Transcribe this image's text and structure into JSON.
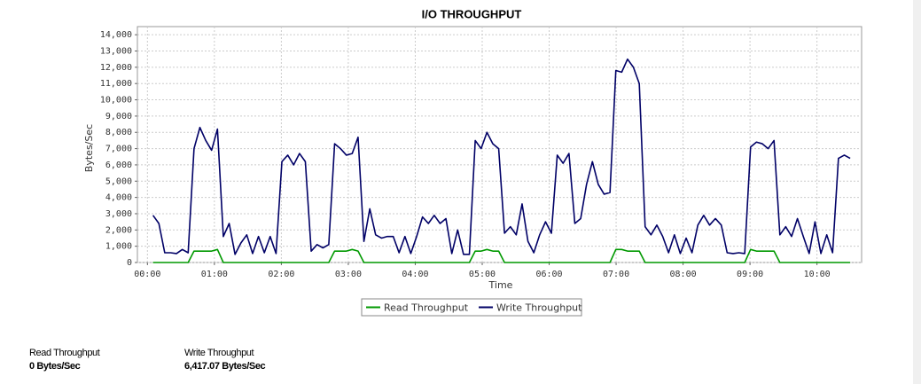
{
  "chart_data": {
    "type": "line",
    "title": "I/O THROUGHPUT",
    "xlabel": "Time",
    "ylabel": "Bytes/Sec",
    "x": [
      5,
      10.25,
      15.5,
      20.75,
      26,
      31.25,
      36.5,
      41.75,
      47,
      52.25,
      57.5,
      62.75,
      68,
      73.25,
      78.5,
      83.75,
      89,
      94.25,
      99.5,
      104.75,
      110,
      115.25,
      120.5,
      125.75,
      131,
      136.25,
      141.5,
      146.75,
      152,
      157.25,
      162.5,
      167.75,
      173,
      178.25,
      183.5,
      188.75,
      194,
      199.25,
      204.5,
      209.75,
      215,
      220.25,
      225.5,
      230.75,
      236,
      241.25,
      246.5,
      251.75,
      257,
      262.25,
      267.5,
      272.75,
      278,
      283.25,
      288.5,
      293.75,
      299,
      304.25,
      309.5,
      314.75,
      320,
      325.25,
      330.5,
      335.75,
      341,
      346.25,
      351.5,
      356.75,
      362,
      367.25,
      372.5,
      377.75,
      383,
      388.25,
      393.5,
      398.75,
      404,
      409.25,
      414.5,
      419.75,
      425,
      430.25,
      435.5,
      440.75,
      446,
      451.25,
      456.5,
      461.75,
      467,
      472.25,
      477.5,
      482.75,
      488,
      493.25,
      498.5,
      503.75,
      509,
      514.25,
      519.5,
      524.75,
      530,
      535.25,
      540.5,
      545.75,
      551,
      556.25,
      561.5,
      566.75,
      572,
      577.25,
      582.5,
      587.75,
      593,
      598.25,
      603.5,
      608.75,
      614,
      619.25,
      624.5,
      629.75
    ],
    "series": [
      {
        "name": "Read Throughput",
        "color": "#009900",
        "values": [
          0,
          0,
          0,
          0,
          0,
          0,
          0,
          700,
          700,
          700,
          700,
          800,
          0,
          0,
          0,
          0,
          0,
          0,
          0,
          0,
          0,
          0,
          0,
          0,
          0,
          0,
          0,
          0,
          0,
          0,
          0,
          700,
          700,
          700,
          800,
          700,
          0,
          0,
          0,
          0,
          0,
          0,
          0,
          0,
          0,
          0,
          0,
          0,
          0,
          0,
          0,
          0,
          0,
          0,
          0,
          700,
          700,
          800,
          700,
          700,
          0,
          0,
          0,
          0,
          0,
          0,
          0,
          0,
          0,
          0,
          0,
          0,
          0,
          0,
          0,
          0,
          0,
          0,
          0,
          800,
          800,
          700,
          700,
          700,
          0,
          0,
          0,
          0,
          0,
          0,
          0,
          0,
          0,
          0,
          0,
          0,
          0,
          0,
          0,
          0,
          0,
          0,
          800,
          700,
          700,
          700,
          700,
          0,
          0,
          0,
          0,
          0,
          0,
          0,
          0,
          0,
          0,
          0,
          0,
          0
        ]
      },
      {
        "name": "Write Throughput",
        "color": "#000066",
        "values": [
          2900,
          2400,
          600,
          600,
          550,
          800,
          600,
          7000,
          8300,
          7500,
          6900,
          8200,
          1600,
          2400,
          500,
          1200,
          1700,
          550,
          1600,
          600,
          1600,
          550,
          6200,
          6600,
          6000,
          6700,
          6200,
          700,
          1100,
          900,
          1100,
          7300,
          7000,
          6600,
          6700,
          7700,
          1300,
          3300,
          1700,
          1500,
          1600,
          1600,
          600,
          1600,
          550,
          1600,
          2800,
          2400,
          2900,
          2400,
          2700,
          550,
          2000,
          500,
          500,
          7500,
          7000,
          8000,
          7300,
          7000,
          1800,
          2200,
          1700,
          3600,
          1300,
          600,
          1700,
          2500,
          1800,
          6600,
          6100,
          6700,
          2400,
          2700,
          4800,
          6200,
          4800,
          4200,
          4300,
          11800,
          11700,
          12500,
          12000,
          11000,
          2200,
          1700,
          2300,
          1600,
          600,
          1700,
          550,
          1500,
          600,
          2300,
          2900,
          2300,
          2700,
          2300,
          600,
          550,
          600,
          550,
          7100,
          7400,
          7300,
          7000,
          7500,
          1700,
          2200,
          1600,
          2700,
          1600,
          550,
          2500,
          550,
          1700,
          600,
          6400,
          6600,
          6400
        ]
      }
    ],
    "xlim": [
      -9,
      640
    ],
    "xticks": [
      {
        "value": 0,
        "label": "00:00"
      },
      {
        "value": 60,
        "label": "01:00"
      },
      {
        "value": 120,
        "label": "02:00"
      },
      {
        "value": 180,
        "label": "03:00"
      },
      {
        "value": 240,
        "label": "04:00"
      },
      {
        "value": 300,
        "label": "05:00"
      },
      {
        "value": 360,
        "label": "06:00"
      },
      {
        "value": 420,
        "label": "07:00"
      },
      {
        "value": 480,
        "label": "08:00"
      },
      {
        "value": 540,
        "label": "09:00"
      },
      {
        "value": 600,
        "label": "10:00"
      }
    ],
    "ylim": [
      0,
      14500
    ],
    "yticks": [
      0,
      {
        "value": 1000,
        "label": "1,000"
      },
      {
        "value": 2000,
        "label": "2,000"
      },
      {
        "value": 3000,
        "label": "3,000"
      },
      {
        "value": 4000,
        "label": "4,000"
      },
      {
        "value": 5000,
        "label": "5,000"
      },
      {
        "value": 6000,
        "label": "6,000"
      },
      {
        "value": 7000,
        "label": "7,000"
      },
      {
        "value": 8000,
        "label": "8,000"
      },
      {
        "value": 9000,
        "label": "9,000"
      },
      {
        "value": 10000,
        "label": "10,000"
      },
      {
        "value": 11000,
        "label": "11,000"
      },
      {
        "value": 12000,
        "label": "12,000"
      },
      {
        "value": 13000,
        "label": "13,000"
      },
      {
        "value": 14000,
        "label": "14,000"
      }
    ],
    "grid": true,
    "legend": "bottom"
  },
  "summary": [
    {
      "label": "Read Throughput",
      "value": "0 Bytes/Sec"
    },
    {
      "label": "Write Throughput",
      "value": "6,417.07 Bytes/Sec"
    }
  ]
}
